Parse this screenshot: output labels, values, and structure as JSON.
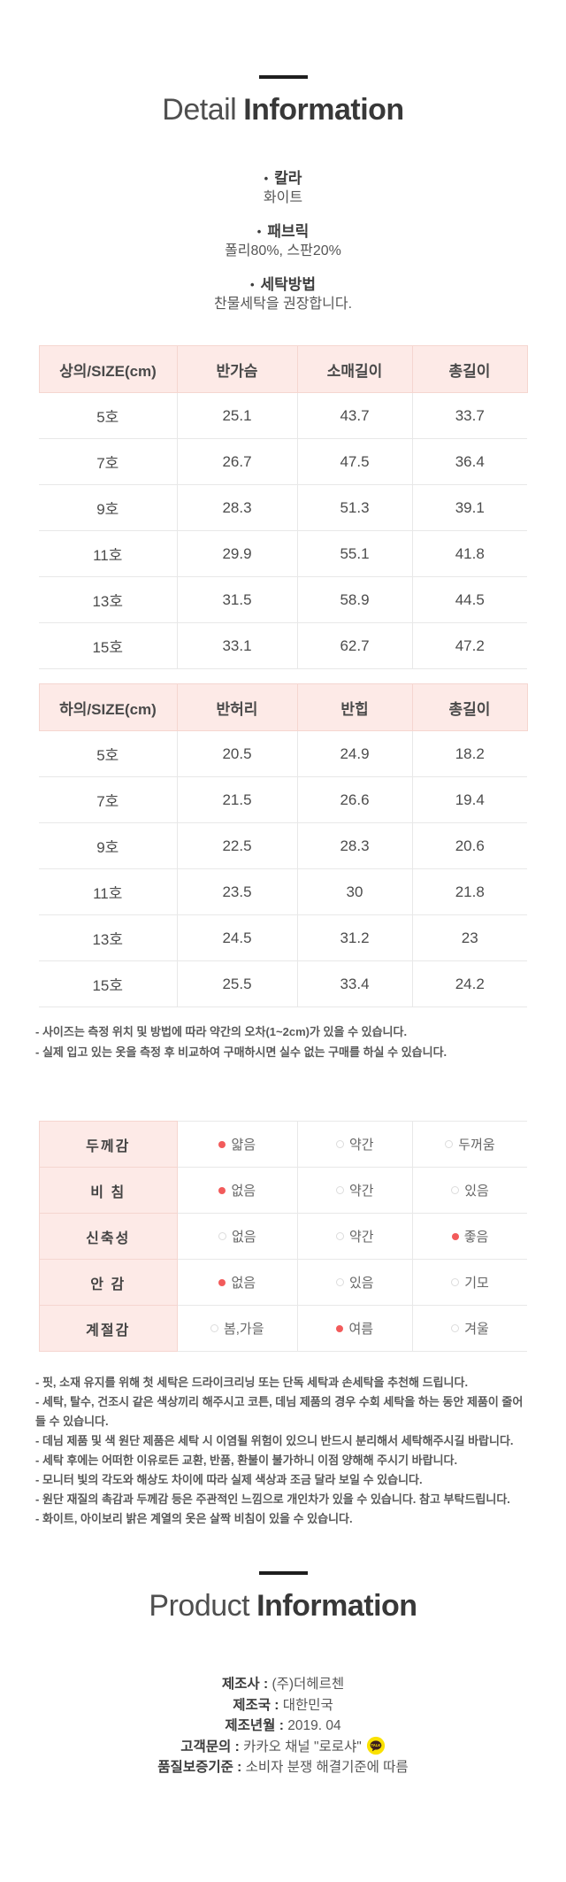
{
  "detail": {
    "title_light": "Detail",
    "title_bold": "Information",
    "bullet_char": "•",
    "items": [
      {
        "label": "칼라",
        "value": "화이트"
      },
      {
        "label": "패브릭",
        "value": "폴리80%, 스판20%"
      },
      {
        "label": "세탁방법",
        "value": "찬물세탁을 권장합니다."
      }
    ]
  },
  "top_size_table": {
    "headers": [
      "상의/SIZE(cm)",
      "반가슴",
      "소매길이",
      "총길이"
    ],
    "rows": [
      [
        "5호",
        "25.1",
        "43.7",
        "33.7"
      ],
      [
        "7호",
        "26.7",
        "47.5",
        "36.4"
      ],
      [
        "9호",
        "28.3",
        "51.3",
        "39.1"
      ],
      [
        "11호",
        "29.9",
        "55.1",
        "41.8"
      ],
      [
        "13호",
        "31.5",
        "58.9",
        "44.5"
      ],
      [
        "15호",
        "33.1",
        "62.7",
        "47.2"
      ]
    ]
  },
  "bottom_size_table": {
    "headers": [
      "하의/SIZE(cm)",
      "반허리",
      "반힙",
      "총길이"
    ],
    "rows": [
      [
        "5호",
        "20.5",
        "24.9",
        "18.2"
      ],
      [
        "7호",
        "21.5",
        "26.6",
        "19.4"
      ],
      [
        "9호",
        "22.5",
        "28.3",
        "20.6"
      ],
      [
        "11호",
        "23.5",
        "30",
        "21.8"
      ],
      [
        "13호",
        "24.5",
        "31.2",
        "23"
      ],
      [
        "15호",
        "25.5",
        "33.4",
        "24.2"
      ]
    ]
  },
  "size_notes": [
    "- 사이즈는 측정 위치 및 방법에 따라 약간의 오차(1~2cm)가 있을 수 있습니다.",
    "- 실제 입고 있는 옷을 측정 후 비교하여 구매하시면 실수 없는 구매를 하실 수 있습니다."
  ],
  "feature_table": {
    "rows": [
      {
        "label": "두께감",
        "options": [
          {
            "text": "얇음",
            "selected": true
          },
          {
            "text": "약간",
            "selected": false
          },
          {
            "text": "두꺼움",
            "selected": false
          }
        ]
      },
      {
        "label": "비 침",
        "options": [
          {
            "text": "없음",
            "selected": true
          },
          {
            "text": "약간",
            "selected": false
          },
          {
            "text": "있음",
            "selected": false
          }
        ]
      },
      {
        "label": "신축성",
        "options": [
          {
            "text": "없음",
            "selected": false
          },
          {
            "text": "약간",
            "selected": false
          },
          {
            "text": "좋음",
            "selected": true
          }
        ]
      },
      {
        "label": "안 감",
        "options": [
          {
            "text": "없음",
            "selected": true
          },
          {
            "text": "있음",
            "selected": false
          },
          {
            "text": "기모",
            "selected": false
          }
        ]
      },
      {
        "label": "계절감",
        "options": [
          {
            "text": "봄,가을",
            "selected": false
          },
          {
            "text": "여름",
            "selected": true
          },
          {
            "text": "겨울",
            "selected": false
          }
        ]
      }
    ]
  },
  "care_notes": [
    "- 핏, 소재 유지를 위해 첫 세탁은 드라이크리닝 또는 단독 세탁과 손세탁을 추천해 드립니다.",
    "- 세탁, 탈수, 건조시 같은 색상끼리 해주시고 코튼, 데님 제품의 경우 수회 세탁을 하는 동안 제품이 줄어들 수 있습니다.",
    "- 데님 제품 및 색 원단 제품은 세탁 시 이염될 위험이 있으니 반드시 분리해서 세탁해주시길 바랍니다.",
    "- 세탁 후에는 어떠한 이유로든 교환, 반품, 환불이 불가하니 이점 양해해 주시기 바랍니다.",
    "- 모니터 빛의 각도와 해상도 차이에 따라 실제 색상과 조금 달라 보일 수 있습니다.",
    "- 원단 재질의 촉감과 두께감 등은 주관적인 느낌으로 개인차가 있을 수 있습니다. 참고 부탁드립니다.",
    "- 화이트, 아이보리 밝은 계열의 옷은 살짝 비침이 있을 수 있습니다."
  ],
  "product": {
    "title_light": "Product",
    "title_bold": "Information",
    "separator": " : ",
    "kakao_icon_text": "TALK",
    "rows": [
      {
        "label": "제조사",
        "value": "(주)더헤르첸"
      },
      {
        "label": "제조국",
        "value": "대한민국"
      },
      {
        "label": "제조년월",
        "value": "2019. 04"
      },
      {
        "label": "고객문의",
        "value": "카카오 채널 \"로로샤\"",
        "icon": "kakao-talk-icon"
      },
      {
        "label": "품질보증기준",
        "value": "소비자 분쟁 해결기준에 따름"
      }
    ]
  },
  "colors": {
    "header_pink": "#fdeae7",
    "pink_border": "#f5d6d0",
    "gray_border": "#e8e8e8",
    "selected_red": "#f25b5b",
    "kakao_yellow": "#fae100",
    "kakao_brown": "#3c1e1e",
    "title_dark": "#383838"
  }
}
